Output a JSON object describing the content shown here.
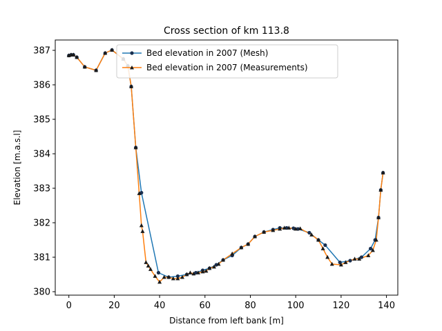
{
  "chart_data": {
    "type": "line",
    "title": "Cross section of km 113.8",
    "xlabel": "Distance from left bank [m]",
    "ylabel": "Elevation [m.a.s.l]",
    "xlim": [
      -6,
      145
    ],
    "ylim": [
      379.9,
      387.3
    ],
    "xticks": [
      0,
      20,
      40,
      60,
      80,
      100,
      120,
      140
    ],
    "yticks": [
      380,
      381,
      382,
      383,
      384,
      385,
      386,
      387
    ],
    "grid": false,
    "legend_position": "top-center",
    "series": [
      {
        "name": "Bed elevation in 2007 (Mesh)",
        "color": "#1f77b4",
        "marker": "circle",
        "x": [
          0.0,
          1.0,
          2.0,
          3.5,
          7.0,
          12.0,
          16.0,
          19.0,
          24.0,
          26.0,
          27.5,
          29.5,
          32.0,
          39.5,
          44.0,
          48.0,
          52.0,
          56.0,
          59.0,
          62.0,
          65.0,
          68.0,
          72.0,
          76.0,
          79.0,
          82.0,
          86.0,
          90.0,
          93.0,
          96.0,
          99.0,
          101.0,
          106.0,
          110.0,
          113.0,
          119.5,
          124.0,
          129.0,
          133.0,
          135.0,
          136.5,
          137.5,
          138.5
        ],
        "y": [
          386.85,
          386.87,
          386.87,
          386.8,
          386.52,
          386.42,
          386.92,
          387.01,
          386.75,
          386.55,
          385.95,
          384.18,
          382.87,
          380.55,
          380.42,
          380.45,
          380.5,
          380.55,
          380.62,
          380.68,
          380.78,
          380.92,
          381.05,
          381.28,
          381.38,
          381.6,
          381.73,
          381.8,
          381.85,
          381.85,
          381.84,
          381.82,
          381.71,
          381.5,
          381.35,
          380.85,
          380.9,
          381.0,
          381.25,
          381.5,
          382.15,
          382.95,
          383.45
        ]
      },
      {
        "name": "Bed elevation in 2007 (Measurements)",
        "color": "#ff7f0e",
        "marker": "triangle",
        "x": [
          0.0,
          1.0,
          2.0,
          3.5,
          7.0,
          12.0,
          16.0,
          19.0,
          24.0,
          26.0,
          27.5,
          29.5,
          31.0,
          32.0,
          32.5,
          34.0,
          35.0,
          36.0,
          38.0,
          40.0,
          42.0,
          44.0,
          46.0,
          48.0,
          50.0,
          52.0,
          53.5,
          55.0,
          57.0,
          59.0,
          60.5,
          62.0,
          64.0,
          66.0,
          68.0,
          72.0,
          76.0,
          79.0,
          82.0,
          86.0,
          90.0,
          93.0,
          95.0,
          97.0,
          100.0,
          102.0,
          107.0,
          110.0,
          112.0,
          114.0,
          116.0,
          120.0,
          122.0,
          126.0,
          128.0,
          132.0,
          134.0,
          135.5,
          136.5,
          137.5,
          138.5
        ],
        "y": [
          386.85,
          386.87,
          386.87,
          386.8,
          386.52,
          386.42,
          386.92,
          387.01,
          386.75,
          386.55,
          385.95,
          384.18,
          382.85,
          381.92,
          381.75,
          380.85,
          380.75,
          380.65,
          380.45,
          380.28,
          380.42,
          380.42,
          380.38,
          380.38,
          380.42,
          380.5,
          380.55,
          380.52,
          380.55,
          380.58,
          380.6,
          380.68,
          380.72,
          380.8,
          380.92,
          381.1,
          381.28,
          381.38,
          381.6,
          381.73,
          381.78,
          381.82,
          381.85,
          381.85,
          381.82,
          381.83,
          381.65,
          381.5,
          381.25,
          381.0,
          380.8,
          380.78,
          380.85,
          380.95,
          380.95,
          381.05,
          381.2,
          381.5,
          382.15,
          382.95,
          383.45
        ]
      }
    ]
  }
}
